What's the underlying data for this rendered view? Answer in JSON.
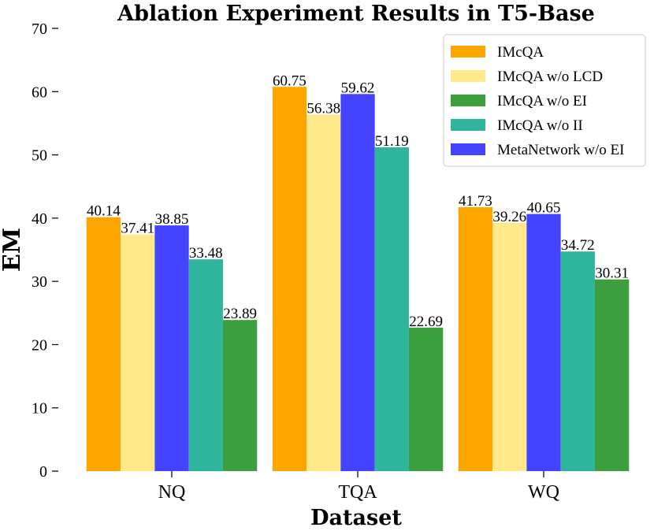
{
  "chart_data": {
    "type": "bar",
    "title": "Ablation Experiment Results in T5-Base",
    "xlabel": "Dataset",
    "ylabel": "EM",
    "ylim": [
      0,
      70
    ],
    "yticks": [
      0,
      10,
      20,
      30,
      40,
      50,
      60,
      70
    ],
    "categories": [
      "NQ",
      "TQA",
      "WQ"
    ],
    "bar_order": [
      [
        "IMcQA",
        "IMcQA w/o LCD",
        "MetaNetwork w/o EI",
        "IMcQA w/o II",
        "IMcQA w/o EI"
      ],
      [
        "IMcQA",
        "IMcQA w/o LCD",
        "MetaNetwork w/o EI",
        "IMcQA w/o II",
        "IMcQA w/o EI"
      ],
      [
        "IMcQA",
        "IMcQA w/o LCD",
        "MetaNetwork w/o EI",
        "IMcQA w/o II",
        "IMcQA w/o EI"
      ]
    ],
    "series": [
      {
        "name": "IMcQA",
        "color": "#FFA500",
        "values": [
          40.14,
          60.75,
          41.73
        ]
      },
      {
        "name": "IMcQA w/o LCD",
        "color": "#FFE98A",
        "values": [
          37.41,
          56.38,
          39.26
        ]
      },
      {
        "name": "IMcQA w/o EI",
        "color": "#3C9E3C",
        "values": [
          23.89,
          22.69,
          30.31
        ]
      },
      {
        "name": "IMcQA w/o II",
        "color": "#2EB59A",
        "values": [
          33.48,
          51.19,
          34.72
        ]
      },
      {
        "name": "MetaNetwork w/o EI",
        "color": "#4444FF",
        "values": [
          38.85,
          59.62,
          40.65
        ]
      }
    ],
    "legend_position": "top-right",
    "grid": false
  }
}
